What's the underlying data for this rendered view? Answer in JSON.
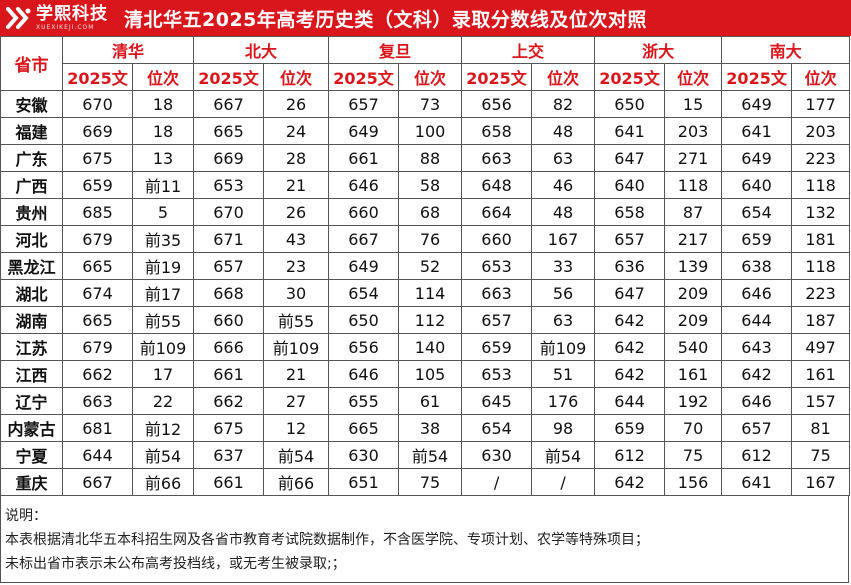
{
  "brand": {
    "name": "学熙科技",
    "sub": "XUEXIKEJI.COM",
    "color": "#d9161c"
  },
  "title": "清北华五2025年高考历史类（文科）录取分数线及位次对照",
  "header": {
    "province_label": "省市",
    "schools": [
      "清华",
      "北大",
      "复旦",
      "上交",
      "浙大",
      "南大"
    ],
    "score_label": "2025文",
    "rank_label": "位次"
  },
  "rows": [
    {
      "province": "安徽",
      "cells": [
        "670",
        "18",
        "667",
        "26",
        "657",
        "73",
        "656",
        "82",
        "650",
        "15",
        "649",
        "177"
      ]
    },
    {
      "province": "福建",
      "cells": [
        "669",
        "18",
        "665",
        "24",
        "649",
        "100",
        "658",
        "48",
        "641",
        "203",
        "641",
        "203"
      ]
    },
    {
      "province": "广东",
      "cells": [
        "675",
        "13",
        "669",
        "28",
        "661",
        "88",
        "663",
        "63",
        "647",
        "271",
        "649",
        "223"
      ]
    },
    {
      "province": "广西",
      "cells": [
        "659",
        "前11",
        "653",
        "21",
        "646",
        "58",
        "648",
        "46",
        "640",
        "118",
        "640",
        "118"
      ]
    },
    {
      "province": "贵州",
      "cells": [
        "685",
        "5",
        "670",
        "26",
        "660",
        "68",
        "664",
        "48",
        "658",
        "87",
        "654",
        "132"
      ]
    },
    {
      "province": "河北",
      "cells": [
        "679",
        "前35",
        "671",
        "43",
        "667",
        "76",
        "660",
        "167",
        "657",
        "217",
        "659",
        "181"
      ]
    },
    {
      "province": "黑龙江",
      "cells": [
        "665",
        "前19",
        "657",
        "23",
        "649",
        "52",
        "653",
        "33",
        "636",
        "139",
        "638",
        "118"
      ]
    },
    {
      "province": "湖北",
      "cells": [
        "674",
        "前17",
        "668",
        "30",
        "654",
        "114",
        "663",
        "56",
        "647",
        "209",
        "646",
        "223"
      ]
    },
    {
      "province": "湖南",
      "cells": [
        "665",
        "前55",
        "660",
        "前55",
        "650",
        "112",
        "657",
        "63",
        "642",
        "209",
        "644",
        "187"
      ]
    },
    {
      "province": "江苏",
      "cells": [
        "679",
        "前109",
        "666",
        "前109",
        "656",
        "140",
        "659",
        "前109",
        "642",
        "540",
        "643",
        "497"
      ]
    },
    {
      "province": "江西",
      "cells": [
        "662",
        "17",
        "661",
        "21",
        "646",
        "105",
        "653",
        "51",
        "642",
        "161",
        "642",
        "161"
      ]
    },
    {
      "province": "辽宁",
      "cells": [
        "663",
        "22",
        "662",
        "27",
        "655",
        "61",
        "645",
        "176",
        "644",
        "192",
        "646",
        "157"
      ]
    },
    {
      "province": "内蒙古",
      "cells": [
        "681",
        "前12",
        "675",
        "12",
        "665",
        "38",
        "654",
        "98",
        "659",
        "70",
        "657",
        "81"
      ]
    },
    {
      "province": "宁夏",
      "cells": [
        "644",
        "前54",
        "637",
        "前54",
        "630",
        "前54",
        "630",
        "前54",
        "612",
        "75",
        "612",
        "75"
      ]
    },
    {
      "province": "重庆",
      "cells": [
        "667",
        "前66",
        "661",
        "前66",
        "651",
        "75",
        "/",
        "/",
        "642",
        "156",
        "641",
        "167"
      ]
    }
  ],
  "notes": [
    "说明：",
    "本表根据清北华五本科招生网及各省市教育考试院数据制作，不含医学院、专项计划、农学等特殊项目；",
    "未标出省市表示未公布高考投档线，或无考生被录取;；"
  ]
}
